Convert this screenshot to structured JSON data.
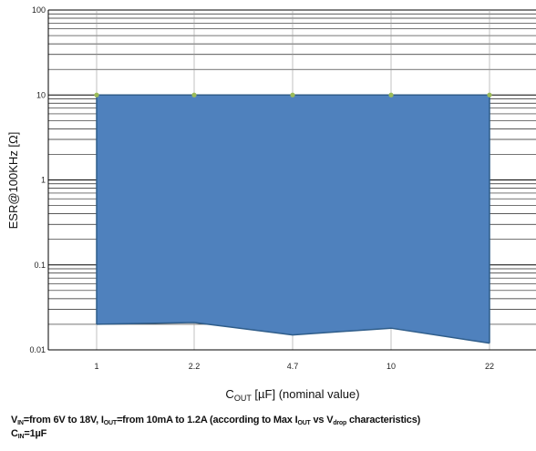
{
  "chart_data": {
    "type": "area",
    "categories": [
      "1",
      "2.2",
      "4.7",
      "10",
      "22"
    ],
    "upper": [
      10,
      10,
      10,
      10,
      10
    ],
    "lower": [
      0.02,
      0.021,
      0.015,
      0.018,
      0.012
    ],
    "y_ticks": [
      "100",
      "10",
      "1",
      "0.1",
      "0.01"
    ],
    "y_scale": "log",
    "ylim": [
      0.01,
      100
    ],
    "xlabel": {
      "main": "C",
      "sub": "OUT",
      "rest": " [µF] (nominal value)"
    },
    "ylabel": "ESR@100KHz [Ω]",
    "grid": true,
    "fill_color": "#4f81bd",
    "edge_color": "#2f5d8a",
    "marker_color": "#9bbb59"
  },
  "caption": {
    "line1": {
      "p1": "V",
      "s1": "IN",
      "p2": "=from 6V to 18V,  I",
      "s2": "OUT",
      "p3": "=from 10mA to 1.2A (according to Max I",
      "s3": "OUT",
      "p4": " vs V",
      "s4": "drop",
      "p5": " characteristics)"
    },
    "line2": {
      "p1": "C",
      "s1": "IN",
      "p2": "=1µF"
    }
  }
}
